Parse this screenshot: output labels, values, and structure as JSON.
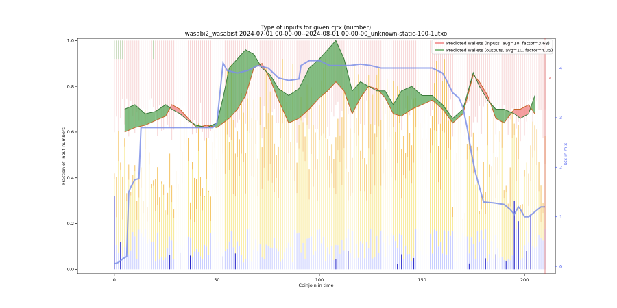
{
  "chart_data": {
    "type": "line",
    "title_line1": "Type of inputs for given cjtx (number)",
    "title_line2": "wasabi2_wasabist 2024-07-01 00-00-00--2024-08-01 00-00-00_unknown-static-100-1utxo",
    "xlabel": "Coinjoin in time",
    "ylabel": "Fraction of input numbers",
    "y2label": "btc in mix",
    "xlim": [
      -18,
      215
    ],
    "ylim": [
      -0.02,
      1.01
    ],
    "y2lim": [
      -0.15,
      4.6
    ],
    "xticks": [
      "0",
      "50",
      "100",
      "150",
      "200"
    ],
    "yticks": [
      "0.0",
      "0.2",
      "0.4",
      "0.6",
      "0.8",
      "1.0"
    ],
    "y2ticks": [
      "0",
      "1",
      "2",
      "3",
      "4"
    ],
    "y2_marker_label": "1e",
    "legend": {
      "position": "top-right",
      "entries": [
        {
          "label": "Predicted wallets (inputs, avg=10, factor=3.68)",
          "color": "#f08080"
        },
        {
          "label": "Predicted wallets (outputs, avg=10, factor=4.05)",
          "color": "#60a860"
        }
      ]
    },
    "colors": {
      "inputs_fill": "#f08080",
      "inputs_line": "#c86428",
      "outputs_fill": "#5aa85a",
      "outputs_line": "#3a7a3a",
      "btc_line": "#7c8fe8",
      "bar_yellow": "#f5e06a",
      "bar_orange": "#f0b030",
      "bar_pink": "#f0b4b4",
      "bar_blue": "#9aa4ff",
      "bar_darkblue": "#2626c8"
    },
    "series": [
      {
        "name": "Predicted wallets (inputs, avg=10, factor=3.68)",
        "x": [
          5,
          10,
          15,
          20,
          25,
          28,
          32,
          36,
          40,
          45,
          50,
          53,
          56,
          60,
          64,
          68,
          72,
          76,
          80,
          85,
          90,
          95,
          100,
          104,
          108,
          112,
          116,
          120,
          124,
          128,
          132,
          136,
          140,
          145,
          150,
          155,
          160,
          165,
          170,
          175,
          178,
          182,
          186,
          190,
          195,
          198,
          202,
          205
        ],
        "values": [
          0.6,
          0.62,
          0.63,
          0.65,
          0.67,
          0.72,
          0.7,
          0.66,
          0.62,
          0.63,
          0.62,
          0.64,
          0.66,
          0.7,
          0.76,
          0.88,
          0.9,
          0.83,
          0.74,
          0.64,
          0.66,
          0.7,
          0.75,
          0.78,
          0.82,
          0.78,
          0.68,
          0.75,
          0.8,
          0.79,
          0.75,
          0.68,
          0.67,
          0.7,
          0.72,
          0.74,
          0.7,
          0.64,
          0.68,
          0.85,
          0.82,
          0.76,
          0.66,
          0.64,
          0.7,
          0.7,
          0.72,
          0.68
        ]
      },
      {
        "name": "Predicted wallets (outputs, avg=10, factor=4.05)",
        "x": [
          5,
          10,
          15,
          20,
          25,
          28,
          32,
          36,
          40,
          45,
          50,
          53,
          56,
          60,
          64,
          68,
          72,
          76,
          80,
          85,
          90,
          95,
          100,
          104,
          108,
          112,
          116,
          120,
          124,
          128,
          132,
          136,
          140,
          145,
          150,
          155,
          160,
          165,
          170,
          175,
          178,
          182,
          186,
          190,
          195,
          198,
          202,
          205
        ],
        "values": [
          0.7,
          0.72,
          0.68,
          0.69,
          0.72,
          0.7,
          0.68,
          0.65,
          0.63,
          0.62,
          0.64,
          0.75,
          0.88,
          0.92,
          0.96,
          0.94,
          0.88,
          0.85,
          0.79,
          0.76,
          0.79,
          0.88,
          0.92,
          0.96,
          1.0,
          0.92,
          0.78,
          0.82,
          0.8,
          0.78,
          0.78,
          0.72,
          0.78,
          0.8,
          0.76,
          0.76,
          0.72,
          0.66,
          0.7,
          0.86,
          0.8,
          0.74,
          0.7,
          0.7,
          0.68,
          0.66,
          0.68,
          0.76
        ]
      },
      {
        "name": "btc in mix",
        "axis": "right",
        "x": [
          0,
          2,
          4,
          6,
          7,
          8,
          10,
          12,
          13,
          15,
          20,
          30,
          40,
          48,
          50,
          52,
          53,
          55,
          60,
          65,
          70,
          75,
          80,
          85,
          90,
          91,
          95,
          100,
          105,
          110,
          115,
          120,
          125,
          130,
          135,
          140,
          145,
          150,
          155,
          160,
          162,
          165,
          168,
          170,
          172,
          174,
          176,
          180,
          185,
          190,
          193,
          195,
          197,
          198,
          200,
          202,
          205,
          208,
          210
        ],
        "values": [
          0.05,
          0.08,
          0.15,
          0.2,
          1.5,
          1.6,
          1.75,
          1.77,
          2.8,
          2.8,
          2.8,
          2.8,
          2.8,
          2.8,
          2.9,
          3.7,
          4.1,
          3.95,
          3.9,
          3.95,
          4.05,
          4.0,
          3.8,
          3.75,
          3.78,
          4.05,
          4.15,
          4.15,
          4.05,
          4.05,
          4.05,
          4.08,
          4.05,
          4.0,
          4.0,
          4.0,
          4.0,
          4.0,
          4.0,
          3.9,
          3.75,
          3.5,
          3.4,
          3.2,
          2.8,
          2.3,
          1.9,
          1.3,
          1.28,
          1.25,
          1.15,
          1.05,
          1.2,
          1.15,
          1.0,
          1.0,
          1.1,
          1.2,
          1.2
        ]
      }
    ]
  }
}
